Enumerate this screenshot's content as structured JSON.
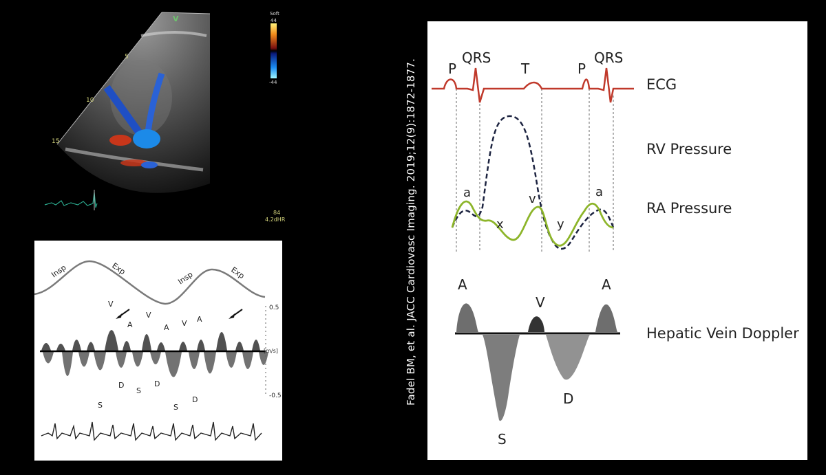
{
  "citation": "Fadel BM, et al. JACC Cardiovasc Imaging. 2019;12(9):1872-1877.",
  "echo": {
    "sector_marker": "V",
    "depth_labels": [
      "5",
      "10",
      "15"
    ],
    "colorbar_title": "Soft",
    "colorbar_max": "44",
    "colorbar_min": "-44",
    "hr_value": "84",
    "hr_label": "4.2dHR"
  },
  "doppler": {
    "resp_labels": [
      "Insp",
      "Exp",
      "Insp",
      "Exp"
    ],
    "peak_labels_top": [
      "V",
      "A",
      "V",
      "A",
      "V",
      "A"
    ],
    "peak_labels_bottom": [
      "S",
      "D",
      "S",
      "D",
      "S",
      "D"
    ],
    "scale_top": "0.5",
    "scale_unit": "[m/s]",
    "scale_bottom": "-0.5"
  },
  "diagram": {
    "ecg_labels": {
      "p1": "P",
      "qrs1": "QRS",
      "t": "T",
      "p2": "P",
      "qrs2": "QRS"
    },
    "row_labels": {
      "ecg": "ECG",
      "rv": "RV Pressure",
      "ra": "RA Pressure",
      "hv": "Hepatic Vein Doppler"
    },
    "ra_wave_labels": {
      "a1": "a",
      "x": "x",
      "v": "v",
      "y": "y",
      "a2": "a"
    },
    "hv_labels": {
      "a1": "A",
      "v": "V",
      "a2": "A",
      "s": "S",
      "d": "D"
    },
    "colors": {
      "ecg": "#c0392b",
      "rv": "#1c2340",
      "ra": "#8db52a",
      "dotted": "#9a9a9a"
    }
  }
}
